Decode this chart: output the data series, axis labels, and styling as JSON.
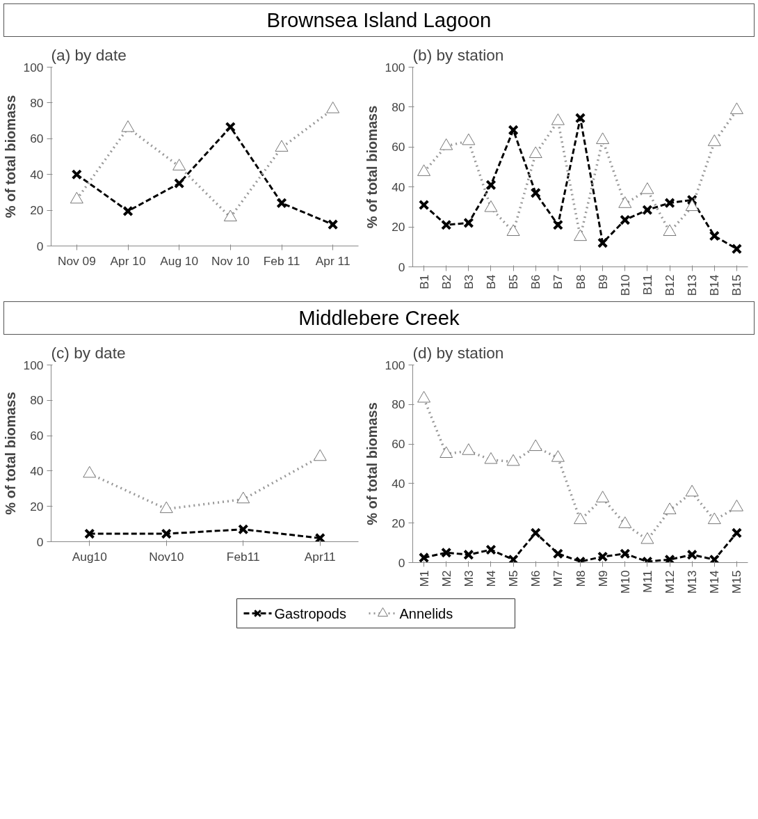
{
  "chart_data": [
    {
      "type": "line",
      "title": "(a) by date",
      "annotations": [
        "Brownsea Island Lagoon"
      ],
      "ylabel": "% of total biomass",
      "categories": [
        "Nov 09",
        "Apr 10",
        "Aug 10",
        "Nov 10",
        "Feb 11",
        "Apr 11"
      ],
      "ylim": [
        0,
        100
      ],
      "yticks": [
        0,
        20,
        40,
        60,
        80,
        100
      ],
      "grid": false,
      "series": [
        {
          "color": "#000000",
          "marker": "cross",
          "line_style": "dashed",
          "values": [
            40,
            19.5,
            35,
            66.5,
            24,
            12
          ]
        },
        {
          "color": "#999999",
          "marker": "triangle",
          "line_style": "dotted",
          "values": [
            26,
            66,
            44.5,
            16,
            55,
            76.5
          ]
        }
      ]
    },
    {
      "type": "line",
      "title": "(b) by station",
      "ylabel": "% of total biomass",
      "categories": [
        "B1",
        "B2",
        "B3",
        "B4",
        "B5",
        "B6",
        "B7",
        "B8",
        "B9",
        "B10",
        "B11",
        "B12",
        "B13",
        "B14",
        "B15"
      ],
      "ylim": [
        0,
        100
      ],
      "yticks": [
        0,
        20,
        40,
        60,
        80,
        100
      ],
      "grid": false,
      "series": [
        {
          "color": "#000000",
          "marker": "cross",
          "line_style": "dashed",
          "values": [
            31,
            21,
            22,
            41,
            68.5,
            37,
            21,
            74.5,
            12,
            23.5,
            28.5,
            32,
            33.5,
            15.5,
            9
          ]
        },
        {
          "color": "#999999",
          "marker": "triangle",
          "line_style": "dotted",
          "values": [
            47.5,
            60.5,
            63,
            29.5,
            17.5,
            56.5,
            73,
            15,
            63.5,
            31.5,
            38.5,
            17.5,
            30,
            62.5,
            78.5
          ]
        }
      ]
    },
    {
      "type": "line",
      "title": "(c) by date",
      "annotations": [
        "Middlebere Creek"
      ],
      "ylabel": "% of total biomass",
      "categories": [
        "Aug10",
        "Nov10",
        "Feb11",
        "Apr11"
      ],
      "ylim": [
        0,
        100
      ],
      "yticks": [
        0,
        20,
        40,
        60,
        80,
        100
      ],
      "grid": false,
      "series": [
        {
          "color": "#000000",
          "marker": "cross",
          "line_style": "dashed",
          "values": [
            4.5,
            4.5,
            7,
            2
          ]
        },
        {
          "color": "#999999",
          "marker": "triangle",
          "line_style": "dotted",
          "values": [
            38.5,
            18.5,
            24,
            48
          ]
        }
      ]
    },
    {
      "type": "line",
      "title": "(d) by station",
      "ylabel": "% of total biomass",
      "categories": [
        "M1",
        "M2",
        "M3",
        "M4",
        "M5",
        "M6",
        "M7",
        "M8",
        "M9",
        "M10",
        "M11",
        "M12",
        "M13",
        "M14",
        "M15"
      ],
      "ylim": [
        0,
        100
      ],
      "yticks": [
        0,
        20,
        40,
        60,
        80,
        100
      ],
      "grid": false,
      "legend": "bottom",
      "series": [
        {
          "name": "Gastropods",
          "color": "#000000",
          "marker": "cross",
          "line_style": "dashed",
          "values": [
            2.5,
            5,
            4,
            6.5,
            1.5,
            15,
            4.5,
            0.5,
            3,
            4.5,
            0.5,
            1.5,
            4,
            1.5,
            15
          ]
        },
        {
          "name": "Annelids",
          "color": "#999999",
          "marker": "triangle",
          "line_style": "dotted",
          "values": [
            83,
            55,
            56.5,
            52,
            51,
            58.5,
            53,
            21.5,
            32.5,
            19.5,
            11.5,
            26.5,
            35.5,
            21.5,
            28
          ]
        }
      ]
    }
  ]
}
